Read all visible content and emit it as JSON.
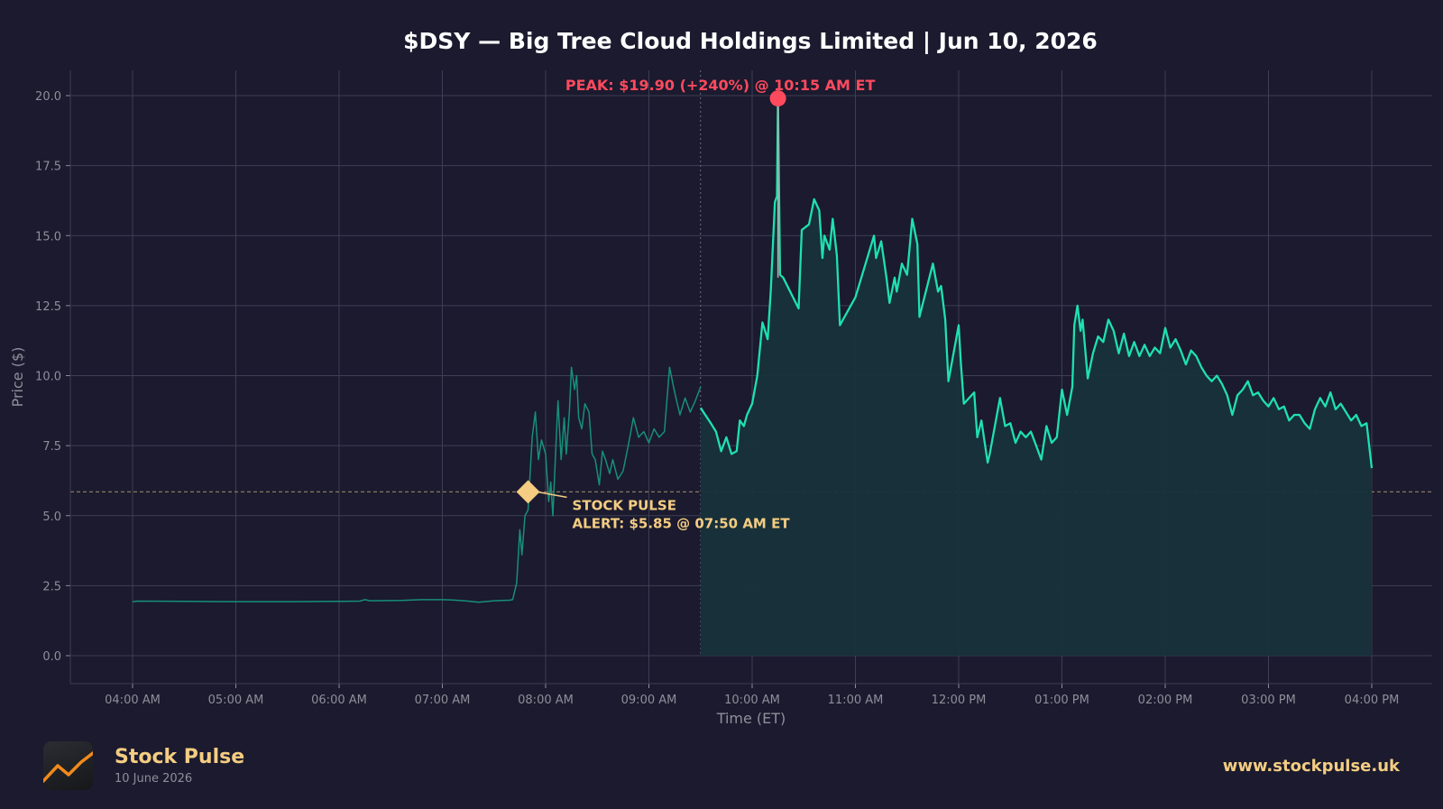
{
  "colors": {
    "background": "#1b1a2e",
    "grid": "#3d3f54",
    "line": "#1fe0b0",
    "line_premarket": "#178f78",
    "fill": "#17323b",
    "peak": "#ff4a5e",
    "alert": "#f4cd82",
    "axis_text": "#8d8f9a"
  },
  "chart_data": {
    "type": "line",
    "title": "$DSY — Big Tree Cloud Holdings Limited  |  Jun 10, 2026",
    "xlabel": "Time (ET)",
    "ylabel": "Price ($)",
    "ylim": [
      -1,
      21
    ],
    "y_ticks": [
      "0.0",
      "2.5",
      "5.0",
      "7.5",
      "10.0",
      "12.5",
      "15.0",
      "17.5",
      "20.0"
    ],
    "x_ticks": [
      "04:00 AM",
      "05:00 AM",
      "06:00 AM",
      "07:00 AM",
      "08:00 AM",
      "09:00 AM",
      "10:00 AM",
      "11:00 AM",
      "12:00 PM",
      "01:00 PM",
      "02:00 PM",
      "03:00 PM",
      "04:00 PM"
    ],
    "x_unit": "hours ET (24h)",
    "grid": true,
    "market_open_marker": 9.5,
    "alert_level_line": 5.85,
    "series": [
      {
        "segment": "premarket",
        "points": [
          [
            4.0,
            1.93
          ],
          [
            4.05,
            1.95
          ],
          [
            4.5,
            1.94
          ],
          [
            5.0,
            1.93
          ],
          [
            5.5,
            1.93
          ],
          [
            6.0,
            1.94
          ],
          [
            6.2,
            1.95
          ],
          [
            6.25,
            2.0
          ],
          [
            6.3,
            1.96
          ],
          [
            6.6,
            1.97
          ],
          [
            6.8,
            2.0
          ],
          [
            7.0,
            2.0
          ],
          [
            7.1,
            1.99
          ],
          [
            7.25,
            1.95
          ],
          [
            7.35,
            1.91
          ],
          [
            7.5,
            1.96
          ],
          [
            7.65,
            1.98
          ],
          [
            7.68,
            2.0
          ],
          [
            7.7,
            2.3
          ],
          [
            7.72,
            2.6
          ],
          [
            7.75,
            4.5
          ],
          [
            7.77,
            3.6
          ],
          [
            7.8,
            5.0
          ],
          [
            7.83,
            5.2
          ],
          [
            7.87,
            7.8
          ],
          [
            7.9,
            8.7
          ],
          [
            7.93,
            7.0
          ],
          [
            7.96,
            7.7
          ],
          [
            8.0,
            7.2
          ],
          [
            8.03,
            5.5
          ],
          [
            8.05,
            6.2
          ],
          [
            8.07,
            5.0
          ],
          [
            8.1,
            7.5
          ],
          [
            8.12,
            9.1
          ],
          [
            8.15,
            7.0
          ],
          [
            8.18,
            8.5
          ],
          [
            8.2,
            7.2
          ],
          [
            8.23,
            8.7
          ],
          [
            8.25,
            10.3
          ],
          [
            8.28,
            9.5
          ],
          [
            8.3,
            10.0
          ],
          [
            8.32,
            8.5
          ],
          [
            8.35,
            8.1
          ],
          [
            8.38,
            9.0
          ],
          [
            8.42,
            8.7
          ],
          [
            8.45,
            7.2
          ],
          [
            8.48,
            7.0
          ],
          [
            8.52,
            6.1
          ],
          [
            8.55,
            7.3
          ],
          [
            8.58,
            7.0
          ],
          [
            8.62,
            6.5
          ],
          [
            8.65,
            7.0
          ],
          [
            8.7,
            6.3
          ],
          [
            8.75,
            6.6
          ],
          [
            8.8,
            7.5
          ],
          [
            8.85,
            8.5
          ],
          [
            8.9,
            7.8
          ],
          [
            8.95,
            8.0
          ],
          [
            9.0,
            7.6
          ],
          [
            9.05,
            8.1
          ],
          [
            9.1,
            7.8
          ],
          [
            9.15,
            8.0
          ],
          [
            9.2,
            10.3
          ],
          [
            9.25,
            9.4
          ],
          [
            9.3,
            8.6
          ],
          [
            9.35,
            9.2
          ],
          [
            9.4,
            8.7
          ],
          [
            9.45,
            9.1
          ],
          [
            9.5,
            9.6
          ]
        ]
      },
      {
        "segment": "regular",
        "points": [
          [
            9.5,
            8.85
          ],
          [
            9.6,
            8.3
          ],
          [
            9.65,
            8.0
          ],
          [
            9.7,
            7.3
          ],
          [
            9.75,
            7.8
          ],
          [
            9.8,
            7.2
          ],
          [
            9.85,
            7.3
          ],
          [
            9.88,
            8.4
          ],
          [
            9.92,
            8.2
          ],
          [
            9.95,
            8.6
          ],
          [
            10.0,
            9.0
          ],
          [
            10.05,
            10.0
          ],
          [
            10.1,
            11.9
          ],
          [
            10.15,
            11.3
          ],
          [
            10.18,
            13.0
          ],
          [
            10.2,
            14.6
          ],
          [
            10.22,
            16.2
          ],
          [
            10.24,
            16.4
          ],
          [
            10.25,
            19.9
          ],
          [
            10.27,
            13.6
          ],
          [
            10.3,
            13.5
          ],
          [
            10.45,
            12.4
          ],
          [
            10.48,
            15.2
          ],
          [
            10.55,
            15.4
          ],
          [
            10.6,
            16.3
          ],
          [
            10.65,
            15.9
          ],
          [
            10.68,
            14.2
          ],
          [
            10.7,
            15.0
          ],
          [
            10.75,
            14.5
          ],
          [
            10.78,
            15.6
          ],
          [
            10.82,
            14.3
          ],
          [
            10.85,
            11.8
          ],
          [
            11.0,
            12.8
          ],
          [
            11.18,
            15.0
          ],
          [
            11.2,
            14.2
          ],
          [
            11.25,
            14.8
          ],
          [
            11.3,
            13.5
          ],
          [
            11.33,
            12.6
          ],
          [
            11.38,
            13.5
          ],
          [
            11.4,
            13.0
          ],
          [
            11.45,
            14.0
          ],
          [
            11.5,
            13.6
          ],
          [
            11.55,
            15.6
          ],
          [
            11.6,
            14.7
          ],
          [
            11.62,
            12.1
          ],
          [
            11.75,
            14.0
          ],
          [
            11.8,
            13.0
          ],
          [
            11.83,
            13.2
          ],
          [
            11.87,
            12.0
          ],
          [
            11.9,
            9.8
          ],
          [
            12.0,
            11.8
          ],
          [
            12.02,
            10.5
          ],
          [
            12.05,
            9.0
          ],
          [
            12.15,
            9.4
          ],
          [
            12.18,
            7.8
          ],
          [
            12.22,
            8.4
          ],
          [
            12.28,
            6.9
          ],
          [
            12.3,
            7.2
          ],
          [
            12.4,
            9.2
          ],
          [
            12.45,
            8.2
          ],
          [
            12.5,
            8.3
          ],
          [
            12.55,
            7.6
          ],
          [
            12.6,
            8.0
          ],
          [
            12.65,
            7.8
          ],
          [
            12.7,
            8.0
          ],
          [
            12.75,
            7.5
          ],
          [
            12.8,
            7.0
          ],
          [
            12.85,
            8.2
          ],
          [
            12.9,
            7.6
          ],
          [
            12.95,
            7.8
          ],
          [
            13.0,
            9.5
          ],
          [
            13.05,
            8.6
          ],
          [
            13.1,
            9.6
          ],
          [
            13.12,
            11.8
          ],
          [
            13.15,
            12.5
          ],
          [
            13.18,
            11.6
          ],
          [
            13.2,
            12.0
          ],
          [
            13.25,
            9.9
          ],
          [
            13.3,
            10.8
          ],
          [
            13.35,
            11.4
          ],
          [
            13.4,
            11.2
          ],
          [
            13.45,
            12.0
          ],
          [
            13.5,
            11.6
          ],
          [
            13.55,
            10.8
          ],
          [
            13.6,
            11.5
          ],
          [
            13.65,
            10.7
          ],
          [
            13.7,
            11.2
          ],
          [
            13.75,
            10.7
          ],
          [
            13.8,
            11.1
          ],
          [
            13.85,
            10.7
          ],
          [
            13.9,
            11.0
          ],
          [
            13.95,
            10.8
          ],
          [
            14.0,
            11.7
          ],
          [
            14.05,
            11.0
          ],
          [
            14.1,
            11.3
          ],
          [
            14.15,
            10.9
          ],
          [
            14.2,
            10.4
          ],
          [
            14.25,
            10.9
          ],
          [
            14.3,
            10.7
          ],
          [
            14.35,
            10.3
          ],
          [
            14.4,
            10.0
          ],
          [
            14.45,
            9.8
          ],
          [
            14.5,
            10.0
          ],
          [
            14.55,
            9.7
          ],
          [
            14.6,
            9.3
          ],
          [
            14.65,
            8.6
          ],
          [
            14.7,
            9.3
          ],
          [
            14.75,
            9.5
          ],
          [
            14.8,
            9.8
          ],
          [
            14.85,
            9.3
          ],
          [
            14.9,
            9.4
          ],
          [
            14.95,
            9.1
          ],
          [
            15.0,
            8.9
          ],
          [
            15.05,
            9.2
          ],
          [
            15.1,
            8.8
          ],
          [
            15.15,
            8.9
          ],
          [
            15.2,
            8.4
          ],
          [
            15.25,
            8.6
          ],
          [
            15.3,
            8.6
          ],
          [
            15.35,
            8.3
          ],
          [
            15.4,
            8.1
          ],
          [
            15.45,
            8.8
          ],
          [
            15.5,
            9.2
          ],
          [
            15.55,
            8.9
          ],
          [
            15.6,
            9.4
          ],
          [
            15.65,
            8.8
          ],
          [
            15.7,
            9.0
          ],
          [
            15.75,
            8.7
          ],
          [
            15.8,
            8.4
          ],
          [
            15.85,
            8.6
          ],
          [
            15.9,
            8.2
          ],
          [
            15.95,
            8.3
          ],
          [
            16.0,
            6.7
          ]
        ]
      }
    ],
    "peak": {
      "x": 10.25,
      "y": 19.9,
      "label": "PEAK: $19.90 (+240%) @ 10:15 AM ET"
    },
    "alert": {
      "x": 7.83,
      "y": 5.85,
      "label_line1": "STOCK PULSE",
      "label_line2": "ALERT: $5.85 @ 07:50 AM ET"
    }
  },
  "footer": {
    "logo_icon": "trend-line-icon",
    "brand_name": "Stock Pulse",
    "brand_date": "10 June 2026",
    "website": "www.stockpulse.uk"
  }
}
